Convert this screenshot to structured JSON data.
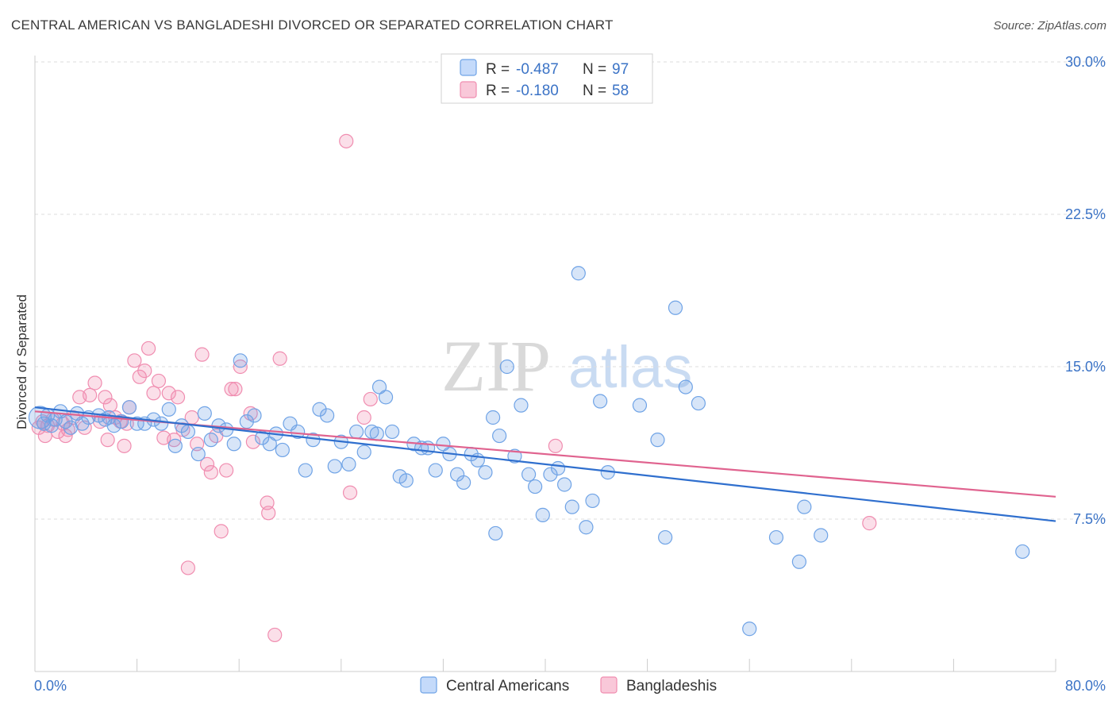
{
  "title": "CENTRAL AMERICAN VS BANGLADESHI DIVORCED OR SEPARATED CORRELATION CHART",
  "source": "Source: ZipAtlas.com",
  "watermark": {
    "zip": "ZIP",
    "atlas": "atlas"
  },
  "legend_top": [
    {
      "r_label": "R =",
      "r_value": "-0.487",
      "n_label": "N =",
      "n_value": "97",
      "color": "#6fa3e6"
    },
    {
      "r_label": "R =",
      "r_value": "-0.180",
      "n_label": "N =",
      "n_value": "58",
      "color": "#f08db0"
    }
  ],
  "chart_data": {
    "type": "scatter",
    "ylabel": "Divorced or Separated",
    "xlim": [
      0,
      80
    ],
    "ylim": [
      0,
      30
    ],
    "x_tick_labels": {
      "min": "0.0%",
      "max": "80.0%"
    },
    "y_ticks": [
      {
        "value": 7.5,
        "label": "7.5%"
      },
      {
        "value": 15,
        "label": "15.0%"
      },
      {
        "value": 22.5,
        "label": "22.5%"
      },
      {
        "value": 30,
        "label": "30.0%"
      }
    ],
    "grid": true,
    "series": [
      {
        "name": "Central Americans",
        "color": "#6fa3e6",
        "line_color": "#2f6fce",
        "trend": {
          "x": [
            0,
            80
          ],
          "y": [
            13.0,
            7.4
          ]
        },
        "points": [
          [
            0.4,
            12.5
          ],
          [
            0.7,
            12.2
          ],
          [
            1.0,
            12.6
          ],
          [
            1.3,
            12.1
          ],
          [
            1.6,
            12.4
          ],
          [
            2.0,
            12.8
          ],
          [
            2.4,
            12.3
          ],
          [
            2.8,
            12.0
          ],
          [
            3.3,
            12.7
          ],
          [
            3.7,
            12.2
          ],
          [
            4.2,
            12.5
          ],
          [
            5.0,
            12.6
          ],
          [
            5.5,
            12.4
          ],
          [
            6.2,
            12.1
          ],
          [
            6.8,
            12.3
          ],
          [
            7.4,
            13.0
          ],
          [
            8.0,
            12.2
          ],
          [
            8.6,
            12.2
          ],
          [
            9.3,
            12.4
          ],
          [
            9.9,
            12.2
          ],
          [
            10.5,
            12.9
          ],
          [
            11.0,
            11.1
          ],
          [
            11.5,
            12.1
          ],
          [
            12.0,
            11.8
          ],
          [
            12.8,
            10.7
          ],
          [
            13.3,
            12.7
          ],
          [
            13.8,
            11.4
          ],
          [
            14.4,
            12.1
          ],
          [
            15.0,
            11.9
          ],
          [
            15.6,
            11.2
          ],
          [
            16.1,
            15.3
          ],
          [
            16.6,
            12.3
          ],
          [
            17.2,
            12.6
          ],
          [
            17.8,
            11.5
          ],
          [
            18.4,
            11.2
          ],
          [
            18.9,
            11.7
          ],
          [
            19.4,
            10.9
          ],
          [
            20.0,
            12.2
          ],
          [
            20.6,
            11.8
          ],
          [
            21.2,
            9.9
          ],
          [
            21.8,
            11.4
          ],
          [
            22.3,
            12.9
          ],
          [
            22.9,
            12.6
          ],
          [
            23.5,
            10.1
          ],
          [
            24.0,
            11.3
          ],
          [
            24.6,
            10.2
          ],
          [
            25.2,
            11.8
          ],
          [
            25.8,
            10.8
          ],
          [
            26.4,
            11.8
          ],
          [
            27.0,
            14.0
          ],
          [
            27.5,
            13.5
          ],
          [
            28.0,
            11.8
          ],
          [
            28.6,
            9.6
          ],
          [
            29.1,
            9.4
          ],
          [
            29.7,
            11.2
          ],
          [
            30.3,
            11.0
          ],
          [
            30.8,
            11.0
          ],
          [
            31.4,
            9.9
          ],
          [
            32.0,
            11.2
          ],
          [
            32.5,
            10.7
          ],
          [
            33.1,
            9.7
          ],
          [
            33.6,
            9.3
          ],
          [
            34.2,
            10.7
          ],
          [
            34.7,
            10.4
          ],
          [
            35.3,
            9.8
          ],
          [
            35.9,
            12.5
          ],
          [
            36.4,
            11.6
          ],
          [
            37.0,
            15.0
          ],
          [
            37.6,
            10.6
          ],
          [
            38.1,
            13.1
          ],
          [
            38.7,
            9.7
          ],
          [
            39.2,
            9.1
          ],
          [
            39.8,
            7.7
          ],
          [
            40.4,
            9.7
          ],
          [
            41.0,
            10.0
          ],
          [
            41.5,
            9.2
          ],
          [
            42.1,
            8.1
          ],
          [
            42.6,
            19.6
          ],
          [
            43.2,
            7.1
          ],
          [
            43.7,
            8.4
          ],
          [
            44.3,
            13.3
          ],
          [
            44.9,
            9.8
          ],
          [
            47.4,
            13.1
          ],
          [
            48.8,
            11.4
          ],
          [
            49.4,
            6.6
          ],
          [
            50.2,
            17.9
          ],
          [
            51.0,
            14.0
          ],
          [
            52.0,
            13.2
          ],
          [
            36.1,
            6.8
          ],
          [
            56.0,
            2.1
          ],
          [
            58.1,
            6.6
          ],
          [
            59.9,
            5.4
          ],
          [
            60.3,
            8.1
          ],
          [
            61.6,
            6.7
          ],
          [
            77.4,
            5.9
          ],
          [
            5.8,
            12.5
          ],
          [
            26.8,
            11.7
          ]
        ]
      },
      {
        "name": "Bangladeshis",
        "color": "#f08db0",
        "line_color": "#e0638f",
        "trend": {
          "x": [
            0,
            80
          ],
          "y": [
            12.8,
            8.6
          ]
        },
        "points": [
          [
            0.3,
            12.0
          ],
          [
            0.6,
            12.3
          ],
          [
            1.0,
            12.1
          ],
          [
            1.4,
            12.4
          ],
          [
            1.8,
            11.8
          ],
          [
            2.2,
            12.2
          ],
          [
            2.6,
            11.9
          ],
          [
            3.0,
            12.5
          ],
          [
            3.5,
            13.5
          ],
          [
            3.9,
            12.0
          ],
          [
            4.3,
            13.6
          ],
          [
            4.7,
            14.2
          ],
          [
            5.1,
            12.3
          ],
          [
            5.5,
            13.5
          ],
          [
            5.9,
            13.1
          ],
          [
            6.3,
            12.5
          ],
          [
            6.7,
            12.3
          ],
          [
            7.0,
            11.1
          ],
          [
            7.4,
            13.0
          ],
          [
            7.8,
            15.3
          ],
          [
            8.2,
            14.5
          ],
          [
            8.6,
            14.8
          ],
          [
            8.9,
            15.9
          ],
          [
            9.3,
            13.7
          ],
          [
            9.7,
            14.3
          ],
          [
            10.1,
            11.5
          ],
          [
            10.5,
            13.7
          ],
          [
            10.9,
            11.4
          ],
          [
            11.2,
            13.5
          ],
          [
            11.6,
            11.9
          ],
          [
            12.0,
            5.1
          ],
          [
            12.3,
            12.5
          ],
          [
            12.7,
            11.2
          ],
          [
            13.1,
            15.6
          ],
          [
            13.5,
            10.2
          ],
          [
            13.8,
            9.8
          ],
          [
            14.2,
            11.6
          ],
          [
            14.6,
            6.9
          ],
          [
            15.0,
            9.9
          ],
          [
            15.4,
            13.9
          ],
          [
            15.7,
            13.9
          ],
          [
            16.1,
            15.0
          ],
          [
            16.9,
            12.7
          ],
          [
            17.1,
            11.3
          ],
          [
            18.2,
            8.3
          ],
          [
            18.3,
            7.8
          ],
          [
            18.8,
            1.8
          ],
          [
            19.2,
            15.4
          ],
          [
            24.4,
            26.1
          ],
          [
            24.7,
            8.8
          ],
          [
            25.8,
            12.5
          ],
          [
            26.3,
            13.4
          ],
          [
            40.8,
            11.1
          ],
          [
            65.4,
            7.3
          ],
          [
            0.8,
            11.6
          ],
          [
            2.4,
            11.6
          ],
          [
            5.7,
            11.4
          ],
          [
            7.2,
            12.2
          ]
        ]
      }
    ]
  },
  "bottom_legend": [
    {
      "label": "Central Americans",
      "color": "#6fa3e6"
    },
    {
      "label": "Bangladeshis",
      "color": "#f08db0"
    }
  ]
}
